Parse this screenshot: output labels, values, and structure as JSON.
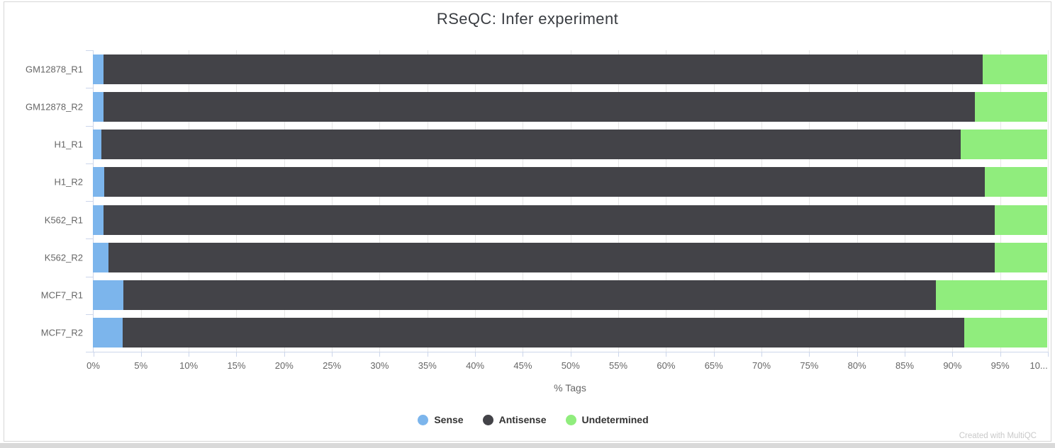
{
  "chart": {
    "title": "RSeQC: Infer experiment",
    "xlabel": "% Tags",
    "credit": "Created with MultiQC"
  },
  "chart_data": {
    "type": "bar",
    "orientation": "horizontal",
    "stacked": true,
    "title": "RSeQC: Infer experiment",
    "xlabel": "% Tags",
    "ylabel": "",
    "xlim": [
      0,
      100
    ],
    "grid": true,
    "legend_position": "bottom",
    "categories": [
      "GM12878_R1",
      "GM12878_R2",
      "H1_R1",
      "H1_R2",
      "K562_R1",
      "K562_R2",
      "MCF7_R1",
      "MCF7_R2"
    ],
    "x_tick_labels": [
      "0%",
      "5%",
      "10%",
      "15%",
      "20%",
      "25%",
      "30%",
      "35%",
      "40%",
      "45%",
      "50%",
      "55%",
      "60%",
      "65%",
      "70%",
      "75%",
      "80%",
      "85%",
      "90%",
      "95%",
      "10..."
    ],
    "series": [
      {
        "name": "Sense",
        "color": "#7cb5ec",
        "values": [
          1.1,
          1.1,
          0.9,
          1.2,
          1.1,
          1.6,
          3.2,
          3.1
        ]
      },
      {
        "name": "Antisense",
        "color": "#434348",
        "values": [
          92.1,
          91.3,
          90.0,
          92.2,
          93.4,
          92.9,
          85.1,
          88.2
        ]
      },
      {
        "name": "Undetermined",
        "color": "#90ed7d",
        "values": [
          6.8,
          7.6,
          9.1,
          6.6,
          5.5,
          5.5,
          11.7,
          8.7
        ]
      }
    ],
    "colors": {
      "axis_line": "#ccd6eb",
      "gridline": "#e6e6e6",
      "tick_label": "#666666",
      "legend_text": "#333333",
      "title": "#3a3d42",
      "credit": "#c9c9c9"
    }
  }
}
